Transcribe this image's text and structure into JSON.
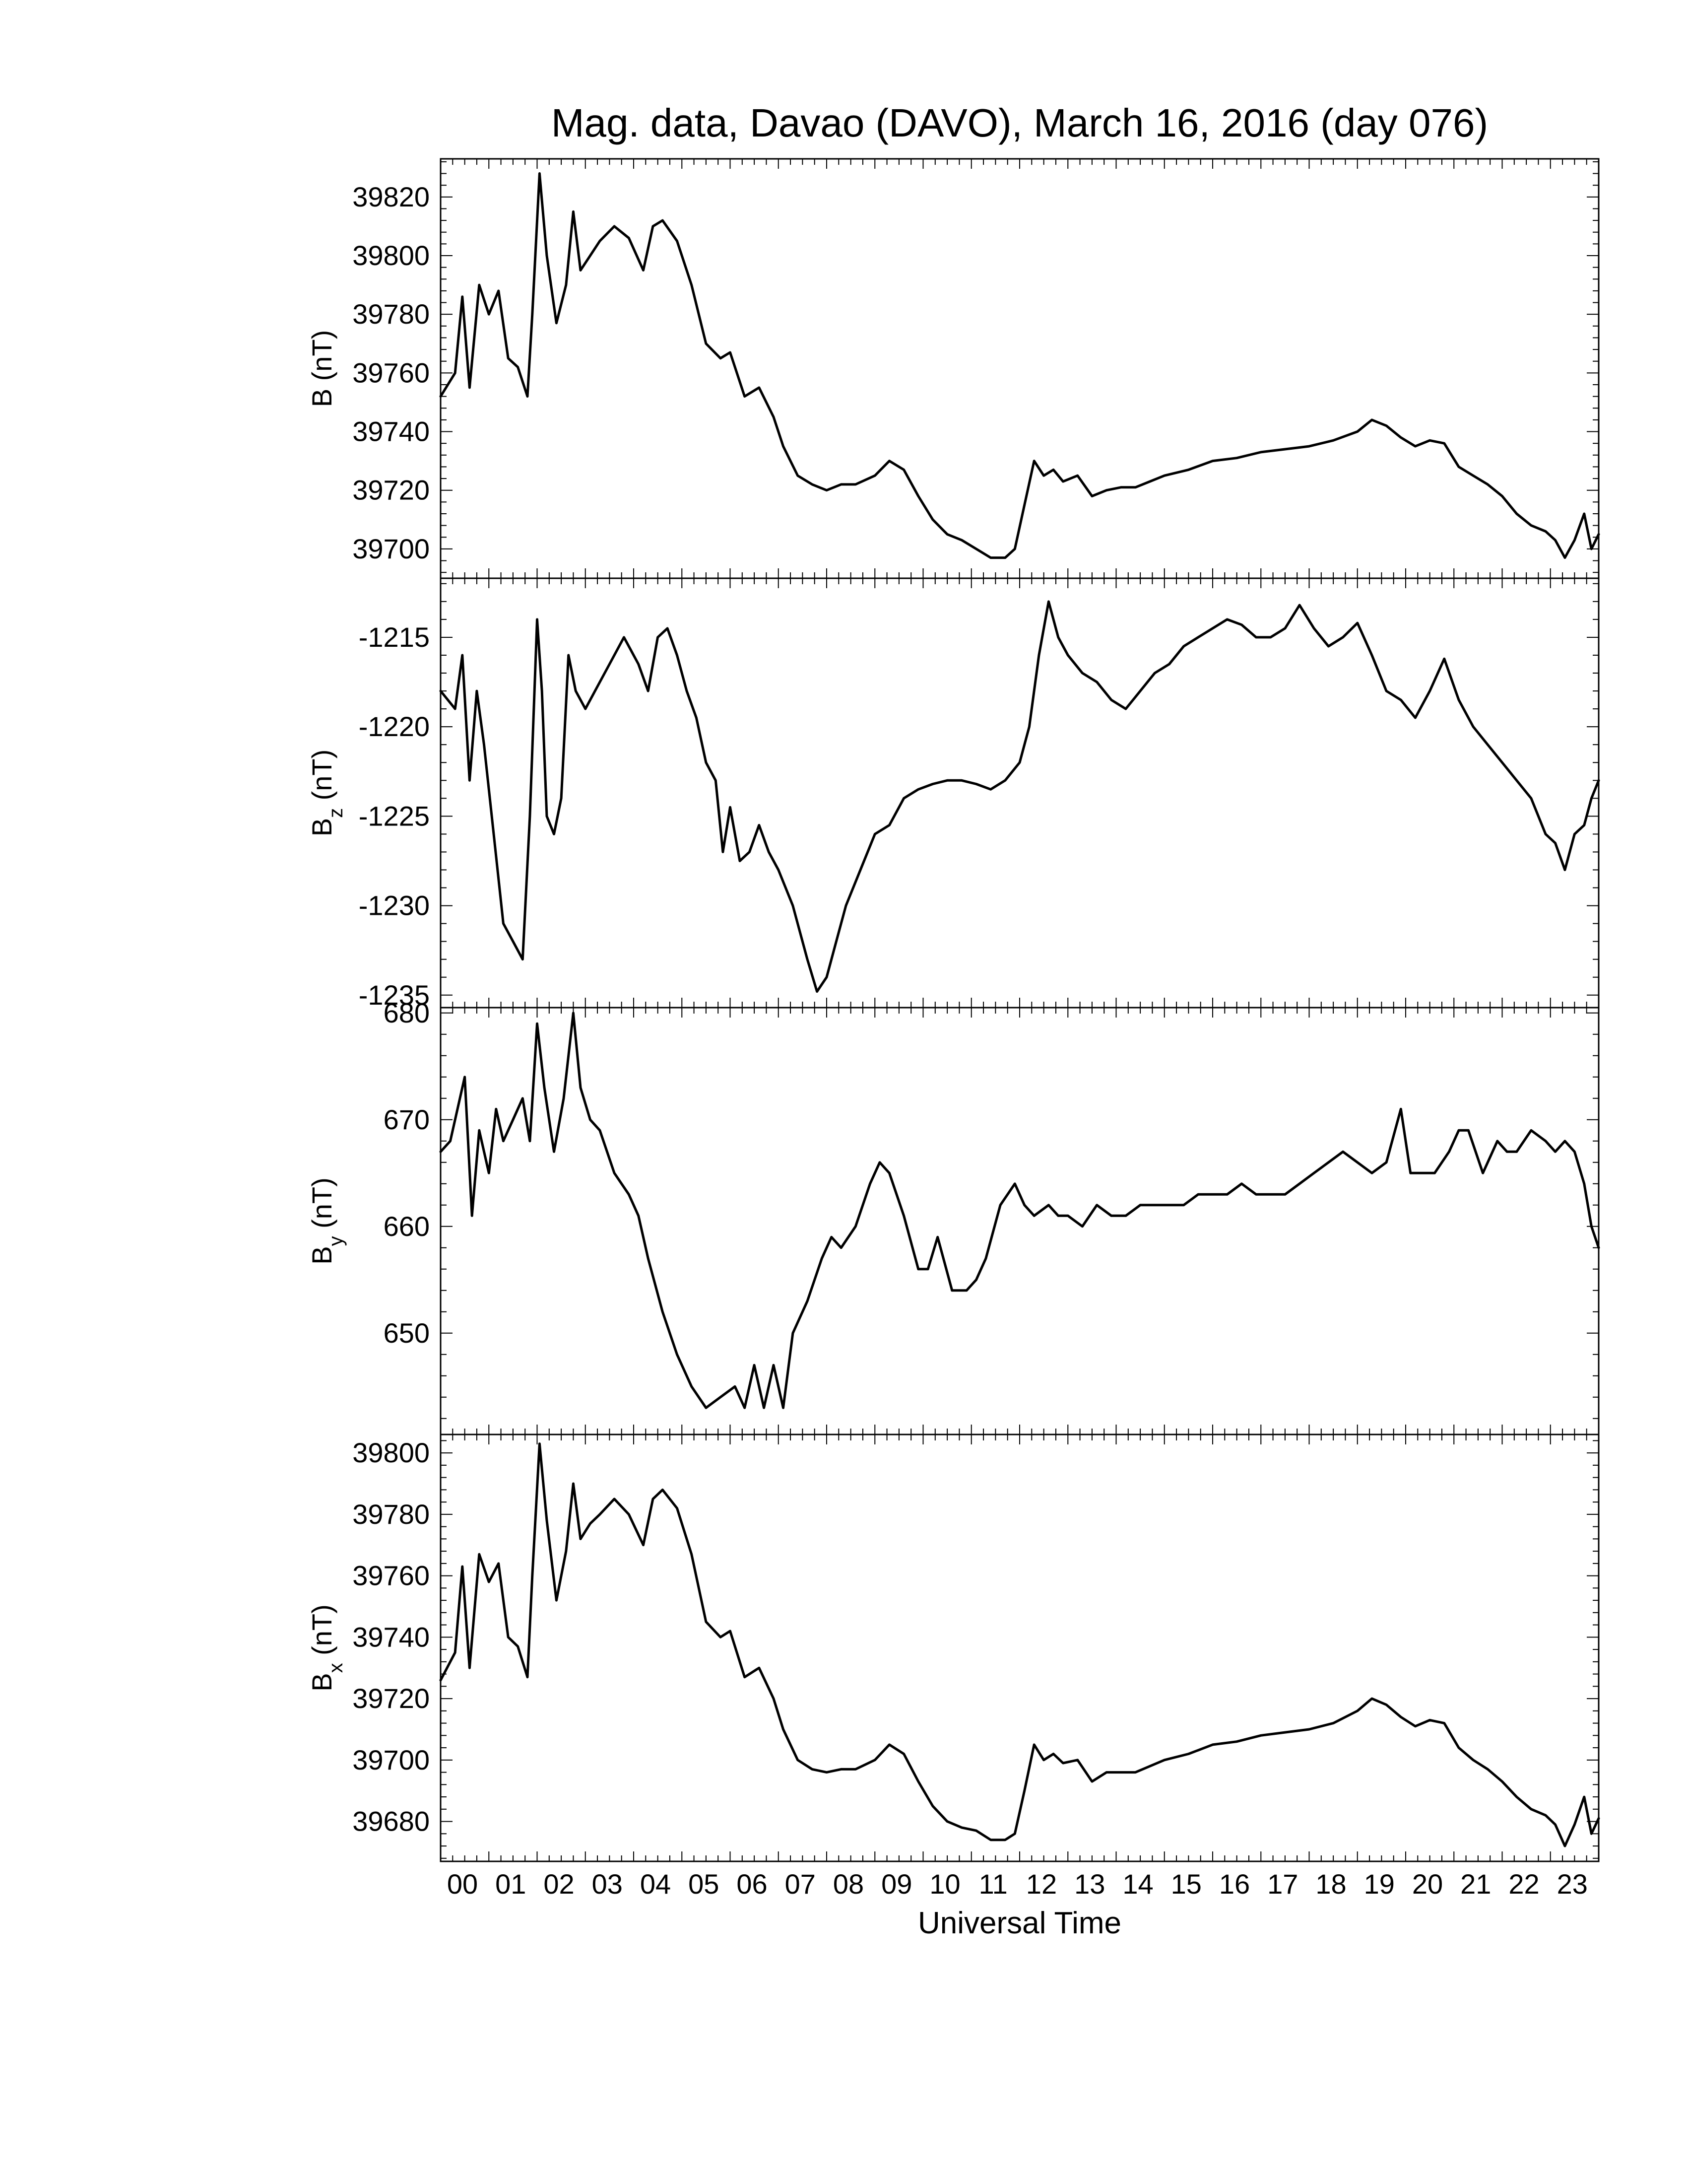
{
  "chart_data": {
    "type": "line",
    "title": "Mag. data, Davao (DAVO), March 16, 2016 (day 076)",
    "xlabel": "Universal Time",
    "x_ticks": [
      "00",
      "01",
      "02",
      "03",
      "04",
      "05",
      "06",
      "07",
      "08",
      "09",
      "10",
      "11",
      "12",
      "13",
      "14",
      "15",
      "16",
      "17",
      "18",
      "19",
      "20",
      "21",
      "22",
      "23"
    ],
    "xlim": [
      0,
      24
    ],
    "panels": [
      {
        "ylabel": "B (nT)",
        "ylabel_main": "B",
        "ylabel_sub": "",
        "ylabel_unit": "(nT)",
        "ylim": [
          39690,
          39833
        ],
        "y_ticks": [
          39700,
          39720,
          39740,
          39760,
          39780,
          39800,
          39820
        ],
        "series": [
          {
            "x": [
              0,
              0.3,
              0.45,
              0.6,
              0.8,
              1.0,
              1.2,
              1.4,
              1.6,
              1.8,
              1.9,
              2.05,
              2.2,
              2.4,
              2.6,
              2.75,
              2.9,
              3.1,
              3.3,
              3.6,
              3.9,
              4.2,
              4.4,
              4.6,
              4.9,
              5.2,
              5.5,
              5.8,
              6.0,
              6.3,
              6.6,
              6.9,
              7.1,
              7.4,
              7.7,
              8.0,
              8.3,
              8.6,
              9.0,
              9.3,
              9.6,
              9.9,
              10.2,
              10.5,
              10.8,
              11.1,
              11.4,
              11.7,
              11.9,
              12.1,
              12.3,
              12.5,
              12.7,
              12.9,
              13.2,
              13.5,
              13.8,
              14.1,
              14.4,
              14.7,
              15.0,
              15.5,
              16.0,
              16.5,
              17.0,
              17.5,
              18.0,
              18.5,
              19.0,
              19.3,
              19.6,
              19.9,
              20.2,
              20.5,
              20.8,
              21.1,
              21.4,
              21.7,
              22.0,
              22.3,
              22.6,
              22.9,
              23.1,
              23.3,
              23.5,
              23.7,
              23.85,
              24.0
            ],
            "y": [
              39752,
              39760,
              39786,
              39755,
              39790,
              39780,
              39788,
              39765,
              39762,
              39752,
              39780,
              39828,
              39800,
              39777,
              39790,
              39815,
              39795,
              39800,
              39805,
              39810,
              39806,
              39795,
              39810,
              39812,
              39805,
              39790,
              39770,
              39765,
              39767,
              39752,
              39755,
              39745,
              39735,
              39725,
              39722,
              39720,
              39722,
              39722,
              39725,
              39730,
              39727,
              39718,
              39710,
              39705,
              39703,
              39700,
              39697,
              39697,
              39700,
              39715,
              39730,
              39725,
              39727,
              39723,
              39725,
              39718,
              39720,
              39721,
              39721,
              39723,
              39725,
              39727,
              39730,
              39731,
              39733,
              39734,
              39735,
              39737,
              39740,
              39744,
              39742,
              39738,
              39735,
              39737,
              39736,
              39728,
              39725,
              39722,
              39718,
              39712,
              39708,
              39706,
              39703,
              39697,
              39703,
              39712,
              39700,
              39705
            ]
          }
        ]
      },
      {
        "ylabel": "Bz (nT)",
        "ylabel_main": "B",
        "ylabel_sub": "z",
        "ylabel_unit": "(nT)",
        "ylim": [
          -1235.7,
          -1211.7
        ],
        "y_ticks": [
          -1215,
          -1220,
          -1225,
          -1230,
          -1235
        ],
        "y_tick_labels": [
          "-1215",
          "-1220",
          "-1225",
          "-1230",
          "-1235"
        ],
        "series": [
          {
            "x": [
              0,
              0.3,
              0.45,
              0.6,
              0.75,
              0.9,
              1.1,
              1.3,
              1.5,
              1.7,
              1.85,
              2.0,
              2.1,
              2.2,
              2.35,
              2.5,
              2.65,
              2.8,
              3.0,
              3.2,
              3.5,
              3.8,
              4.1,
              4.3,
              4.5,
              4.7,
              4.9,
              5.1,
              5.3,
              5.5,
              5.7,
              5.85,
              6.0,
              6.2,
              6.4,
              6.6,
              6.8,
              7.0,
              7.3,
              7.6,
              7.8,
              8.0,
              8.2,
              8.4,
              8.7,
              9.0,
              9.3,
              9.6,
              9.9,
              10.2,
              10.5,
              10.8,
              11.1,
              11.4,
              11.7,
              12.0,
              12.2,
              12.4,
              12.6,
              12.8,
              13.0,
              13.3,
              13.6,
              13.9,
              14.2,
              14.5,
              14.8,
              15.1,
              15.4,
              15.7,
              16.0,
              16.3,
              16.6,
              16.9,
              17.2,
              17.5,
              17.8,
              18.1,
              18.4,
              18.7,
              19.0,
              19.3,
              19.6,
              19.9,
              20.2,
              20.5,
              20.8,
              21.1,
              21.4,
              21.7,
              22.0,
              22.3,
              22.6,
              22.9,
              23.1,
              23.3,
              23.5,
              23.7,
              23.85,
              24.0
            ],
            "y": [
              -1218,
              -1219,
              -1216,
              -1223,
              -1218,
              -1221,
              -1226,
              -1231,
              -1232,
              -1233,
              -1225,
              -1214,
              -1218,
              -1225,
              -1226,
              -1224,
              -1216,
              -1218,
              -1219,
              -1218,
              -1216.5,
              -1215,
              -1216.5,
              -1218,
              -1215,
              -1214.5,
              -1216,
              -1218,
              -1219.5,
              -1222,
              -1223,
              -1227,
              -1224.5,
              -1227.5,
              -1227,
              -1225.5,
              -1227,
              -1228,
              -1230,
              -1233,
              -1234.8,
              -1234,
              -1232,
              -1230,
              -1228,
              -1226,
              -1225.5,
              -1224,
              -1223.5,
              -1223.2,
              -1223,
              -1223,
              -1223.2,
              -1223.5,
              -1223,
              -1222,
              -1220,
              -1216,
              -1213,
              -1215,
              -1216,
              -1217,
              -1217.5,
              -1218.5,
              -1219,
              -1218,
              -1217,
              -1216.5,
              -1215.5,
              -1215,
              -1214.5,
              -1214,
              -1214.3,
              -1215,
              -1215,
              -1214.5,
              -1213.2,
              -1214.5,
              -1215.5,
              -1215,
              -1214.2,
              -1216,
              -1218,
              -1218.5,
              -1219.5,
              -1218,
              -1216.2,
              -1218.5,
              -1220,
              -1221,
              -1222,
              -1223,
              -1224,
              -1226,
              -1226.5,
              -1228,
              -1226,
              -1225.5,
              -1224,
              -1223
            ]
          }
        ]
      },
      {
        "ylabel": "By (nT)",
        "ylabel_main": "B",
        "ylabel_sub": "y",
        "ylabel_unit": "(nT)",
        "ylim": [
          640.5,
          680.5
        ],
        "y_ticks": [
          650,
          660,
          670,
          680
        ],
        "series": [
          {
            "x": [
              0,
              0.2,
              0.5,
              0.65,
              0.8,
              1.0,
              1.15,
              1.3,
              1.5,
              1.7,
              1.85,
              2.0,
              2.15,
              2.35,
              2.55,
              2.75,
              2.9,
              3.1,
              3.3,
              3.6,
              3.9,
              4.1,
              4.3,
              4.6,
              4.9,
              5.2,
              5.5,
              5.8,
              6.1,
              6.3,
              6.5,
              6.7,
              6.9,
              7.1,
              7.3,
              7.6,
              7.9,
              8.1,
              8.3,
              8.6,
              8.9,
              9.1,
              9.3,
              9.6,
              9.9,
              10.1,
              10.3,
              10.6,
              10.9,
              11.1,
              11.3,
              11.6,
              11.9,
              12.1,
              12.3,
              12.6,
              12.8,
              13.0,
              13.3,
              13.6,
              13.9,
              14.2,
              14.5,
              14.8,
              15.1,
              15.4,
              15.7,
              16.0,
              16.3,
              16.6,
              16.9,
              17.2,
              17.5,
              17.8,
              18.1,
              18.4,
              18.7,
              19.0,
              19.3,
              19.6,
              19.9,
              20.1,
              20.3,
              20.6,
              20.9,
              21.1,
              21.3,
              21.6,
              21.9,
              22.1,
              22.3,
              22.6,
              22.9,
              23.1,
              23.3,
              23.5,
              23.7,
              23.85,
              24.0
            ],
            "y": [
              667,
              668,
              674,
              661,
              669,
              665,
              671,
              668,
              670,
              672,
              668,
              679,
              673,
              667,
              672,
              680,
              673,
              670,
              669,
              665,
              663,
              661,
              657,
              652,
              648,
              645,
              643,
              644,
              645,
              643,
              647,
              643,
              647,
              643,
              650,
              653,
              657,
              659,
              658,
              660,
              664,
              666,
              665,
              661,
              656,
              656,
              659,
              654,
              654,
              655,
              657,
              662,
              664,
              662,
              661,
              662,
              661,
              661,
              660,
              662,
              661,
              661,
              662,
              662,
              662,
              662,
              663,
              663,
              663,
              664,
              663,
              663,
              663,
              664,
              665,
              666,
              667,
              666,
              665,
              666,
              671,
              665,
              665,
              665,
              667,
              669,
              669,
              665,
              668,
              667,
              667,
              669,
              668,
              667,
              668,
              667,
              664,
              660,
              658
            ]
          }
        ]
      },
      {
        "ylabel": "Bx (nT)",
        "ylabel_main": "B",
        "ylabel_sub": "x",
        "ylabel_unit": "(nT)",
        "ylim": [
          39667,
          39806
        ],
        "y_ticks": [
          39680,
          39700,
          39720,
          39740,
          39760,
          39780,
          39800
        ],
        "series": [
          {
            "x": [
              0,
              0.3,
              0.45,
              0.6,
              0.8,
              1.0,
              1.2,
              1.4,
              1.6,
              1.8,
              1.9,
              2.05,
              2.2,
              2.4,
              2.6,
              2.75,
              2.9,
              3.1,
              3.3,
              3.6,
              3.9,
              4.2,
              4.4,
              4.6,
              4.9,
              5.2,
              5.5,
              5.8,
              6.0,
              6.3,
              6.6,
              6.9,
              7.1,
              7.4,
              7.7,
              8.0,
              8.3,
              8.6,
              9.0,
              9.3,
              9.6,
              9.9,
              10.2,
              10.5,
              10.8,
              11.1,
              11.4,
              11.7,
              11.9,
              12.1,
              12.3,
              12.5,
              12.7,
              12.9,
              13.2,
              13.5,
              13.8,
              14.1,
              14.4,
              14.7,
              15.0,
              15.5,
              16.0,
              16.5,
              17.0,
              17.5,
              18.0,
              18.5,
              19.0,
              19.3,
              19.6,
              19.9,
              20.2,
              20.5,
              20.8,
              21.1,
              21.4,
              21.7,
              22.0,
              22.3,
              22.6,
              22.9,
              23.1,
              23.3,
              23.5,
              23.7,
              23.85,
              24.0
            ],
            "y": [
              39726,
              39735,
              39763,
              39730,
              39767,
              39758,
              39764,
              39740,
              39737,
              39727,
              39760,
              39803,
              39778,
              39752,
              39768,
              39790,
              39772,
              39777,
              39780,
              39785,
              39780,
              39770,
              39785,
              39788,
              39782,
              39767,
              39745,
              39740,
              39742,
              39727,
              39730,
              39720,
              39710,
              39700,
              39697,
              39696,
              39697,
              39697,
              39700,
              39705,
              39702,
              39693,
              39685,
              39680,
              39678,
              39677,
              39674,
              39674,
              39676,
              39690,
              39705,
              39700,
              39702,
              39699,
              39700,
              39693,
              39696,
              39696,
              39696,
              39698,
              39700,
              39702,
              39705,
              39706,
              39708,
              39709,
              39710,
              39712,
              39716,
              39720,
              39718,
              39714,
              39711,
              39713,
              39712,
              39704,
              39700,
              39697,
              39693,
              39688,
              39684,
              39682,
              39679,
              39672,
              39679,
              39688,
              39676,
              39681
            ]
          }
        ]
      }
    ]
  }
}
